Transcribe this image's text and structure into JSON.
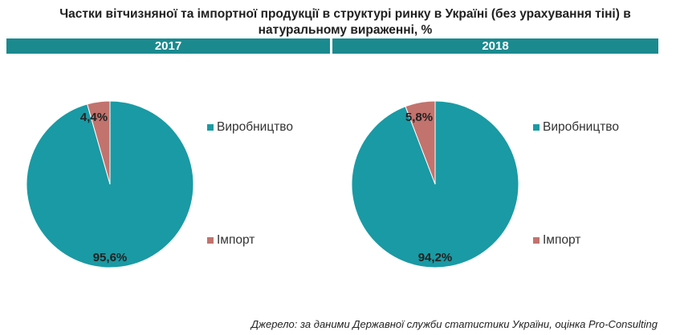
{
  "title": "Частки вітчизняної та імпортної продукції в структурі ринку в Україні (без урахування тіні) в натуральному вираженні, %",
  "source": "Джерело: за даними Державної служби статистики України, оцінка Pro-Consulting",
  "colors": {
    "header_bar": "#1a8a8f",
    "production": "#1a9aa4",
    "import": "#c2736e"
  },
  "chart_data": [
    {
      "type": "pie",
      "title": "2017",
      "labels": [
        "Виробництво",
        "Імпорт"
      ],
      "values": [
        95.6,
        4.4
      ],
      "data_labels": [
        "95,6%",
        "4,4%"
      ],
      "legend_position": "right"
    },
    {
      "type": "pie",
      "title": "2018",
      "labels": [
        "Виробництво",
        "Імпорт"
      ],
      "values": [
        94.2,
        5.8
      ],
      "data_labels": [
        "94,2%",
        "5,8%"
      ],
      "legend_position": "right"
    }
  ]
}
